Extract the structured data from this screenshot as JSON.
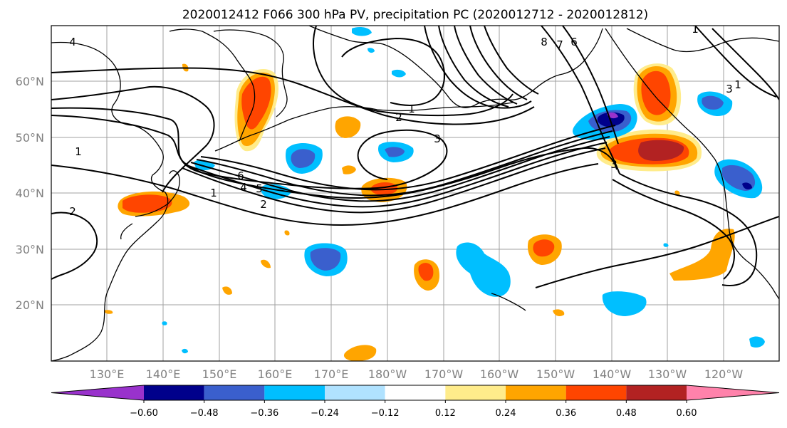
{
  "title": "2020012412 F066 300 hPa PV, precipitation PC (2020012712 - 2020012812)",
  "lat_labels": [
    "60°N",
    "50°N",
    "40°N",
    "30°N",
    "20°N"
  ],
  "lon_labels": [
    "130°E",
    "140°E",
    "150°E",
    "160°E",
    "170°E",
    "180°W",
    "170°W",
    "160°W",
    "150°W",
    "140°W",
    "130°W",
    "120°W"
  ],
  "contour_labels": [
    "4",
    "1",
    "1",
    "2",
    "3",
    "1",
    "8",
    "7",
    "6",
    "6",
    "5",
    "4",
    "1",
    "2",
    "2",
    "3",
    "3",
    "1"
  ],
  "colorbar": {
    "ticks": [
      "-0.60",
      "-0.48",
      "-0.36",
      "-0.24",
      "-0.12",
      "0.12",
      "0.24",
      "0.36",
      "0.48",
      "0.60"
    ],
    "colors": [
      "#9932cc",
      "#00008b",
      "#3a5fcd",
      "#00bfff",
      "#b0e2ff",
      "#ffffff",
      "#ffec8b",
      "#ffa500",
      "#ff4500",
      "#b22222",
      "#ff82ab"
    ]
  },
  "colors": {
    "pos_weak": "#ffec8b",
    "pos_mid": "#ffa500",
    "pos_strong": "#ff4500",
    "pos_max": "#b22222",
    "neg_weak": "#b0e2ff",
    "neg_mid": "#00bfff",
    "neg_strong": "#3a5fcd",
    "neg_max": "#00008b",
    "neg_ext": "#9932cc"
  }
}
